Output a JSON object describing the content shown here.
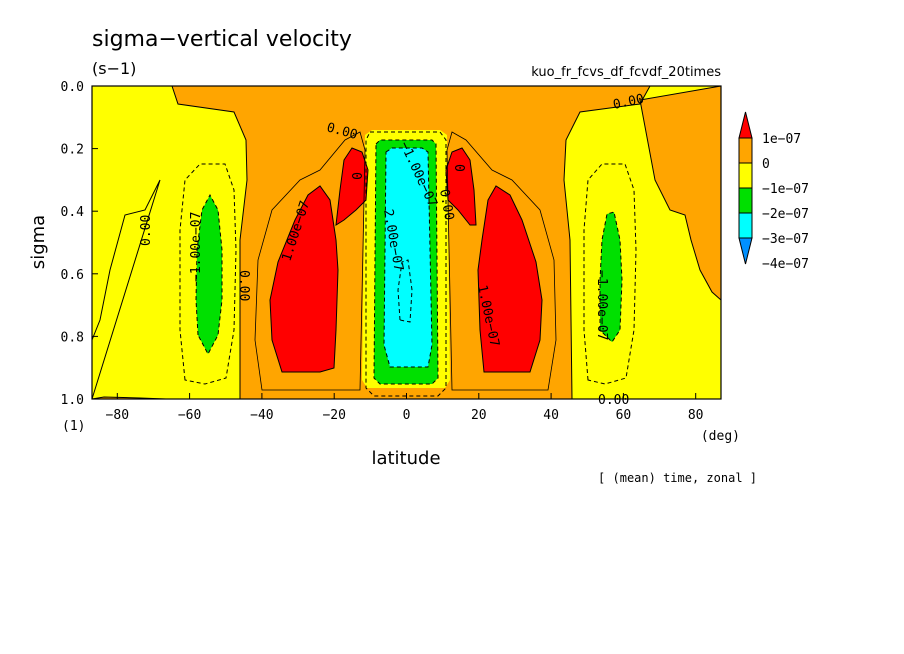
{
  "chart_data": {
    "type": "contour",
    "title": "sigma−vertical velocity",
    "units": "(s−1)",
    "experiment": "kuo_fr_fcvs_df_fcvdf_20times",
    "xlabel": "latitude",
    "x_unit": "(deg)",
    "ylabel": "sigma",
    "y_unit": "(1)",
    "footer": "[ (mean) time, zonal ]",
    "xlim": [
      -87,
      87
    ],
    "ylim": [
      0.0,
      1.0
    ],
    "y_inverted": true,
    "x_ticks": [
      -80,
      -60,
      -40,
      -20,
      0,
      20,
      40,
      60,
      80
    ],
    "x_tick_labels": [
      "−80",
      "−60",
      "−40",
      "−20",
      "0",
      "20",
      "40",
      "60",
      "80"
    ],
    "y_ticks": [
      0.0,
      0.2,
      0.4,
      0.6,
      0.8,
      1.0
    ],
    "y_tick_labels": [
      "0.0",
      "0.2",
      "0.4",
      "0.6",
      "0.8",
      "1.0"
    ],
    "colorbar": {
      "labels": [
        "1e−07",
        "0",
        "−1e−07",
        "−2e−07",
        "−3e−07",
        "−4e−07"
      ],
      "colors": [
        "#ff0000",
        "#ffa500",
        "#ffff00",
        "#00e000",
        "#00ffff",
        "#0090ff"
      ]
    },
    "contour_labels": [
      "0.00",
      "1.00e−07",
      "2.00e−07",
      "−1.00e−07",
      "0"
    ],
    "regions": [
      {
        "level": "0 to 1e−07",
        "color": "#ffa500",
        "x": [
          -60,
          60
        ],
        "y": [
          0.0,
          1.0
        ]
      },
      {
        "level": "−1e−07 to 0",
        "color": "#ffff00",
        "x": [
          -87,
          -47
        ],
        "y": [
          0.0,
          1.0
        ]
      },
      {
        "level": "−1e−07 to 0",
        "color": "#ffff00",
        "x": [
          47,
          87
        ],
        "y": [
          0.0,
          1.0
        ]
      },
      {
        "level": "> 1e−07",
        "color": "#ff0000",
        "x": [
          -38,
          -17
        ],
        "y": [
          0.35,
          0.92
        ]
      },
      {
        "level": "> 1e−07",
        "color": "#ff0000",
        "x": [
          18,
          38
        ],
        "y": [
          0.35,
          0.92
        ]
      },
      {
        "level": "−2e−07 to −1e−07",
        "color": "#00e000",
        "x": [
          -60,
          -53
        ],
        "y": [
          0.35,
          0.86
        ]
      },
      {
        "level": "−2e−07 to −1e−07",
        "color": "#00e000",
        "x": [
          53,
          60
        ],
        "y": [
          0.37,
          0.82
        ]
      },
      {
        "level": "−3e−07 to −2e−07",
        "color": "#00ffff",
        "x": [
          -7,
          7
        ],
        "y": [
          0.2,
          0.9
        ]
      }
    ]
  }
}
